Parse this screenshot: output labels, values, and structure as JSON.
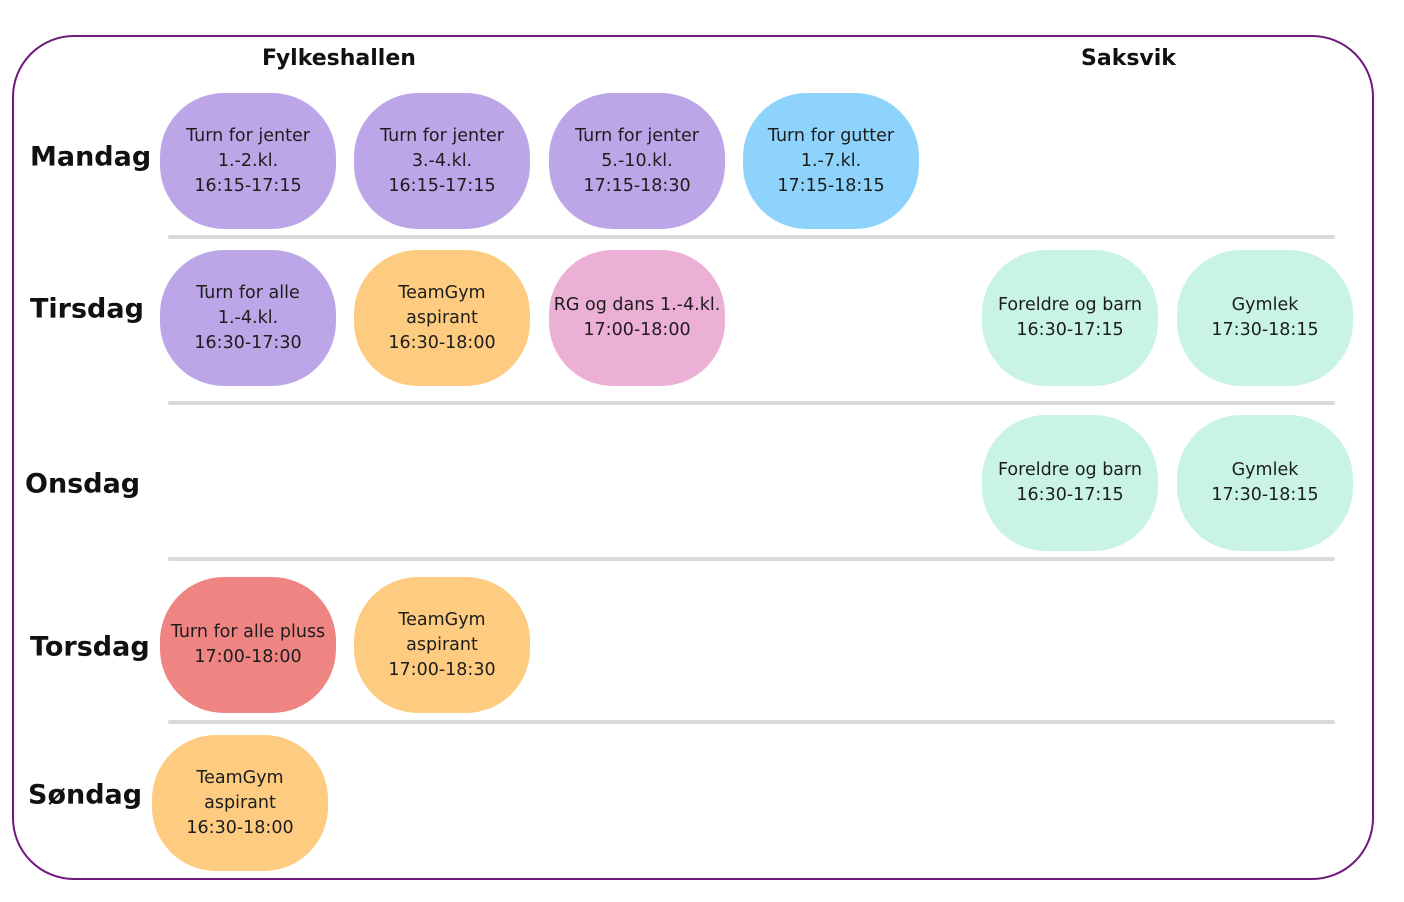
{
  "venues": {
    "fylkeshallen": "Fylkeshallen",
    "saksvik": "Saksvik"
  },
  "colors": {
    "border": "#6f1a7c",
    "divider": "#d9d9d9",
    "purple": "#bca6e8",
    "blue": "#8ed3fc",
    "orange": "#fdcc80",
    "pink": "#ecb0d6",
    "mint": "#c9f4e4",
    "red": "#ef8582"
  },
  "days": {
    "mandag": {
      "label": "Mandag",
      "sessions": [
        {
          "lines": [
            "Turn for jenter",
            "1.-2.kl.",
            "16:15-17:15"
          ],
          "color": "purple"
        },
        {
          "lines": [
            "Turn for jenter",
            "3.-4.kl.",
            "16:15-17:15"
          ],
          "color": "purple"
        },
        {
          "lines": [
            "Turn for jenter",
            "5.-10.kl.",
            "17:15-18:30"
          ],
          "color": "purple"
        },
        {
          "lines": [
            "Turn for gutter",
            "1.-7.kl.",
            "17:15-18:15"
          ],
          "color": "blue"
        }
      ]
    },
    "tirsdag": {
      "label": "Tirsdag",
      "sessions": [
        {
          "lines": [
            "Turn for alle",
            "1.-4.kl.",
            "16:30-17:30"
          ],
          "color": "purple"
        },
        {
          "lines": [
            "TeamGym",
            "aspirant",
            "16:30-18:00"
          ],
          "color": "orange"
        },
        {
          "lines": [
            "RG og dans 1.-4.kl.",
            "17:00-18:00"
          ],
          "color": "pink"
        },
        {
          "lines": [
            "Foreldre og barn",
            "16:30-17:15"
          ],
          "color": "mint"
        },
        {
          "lines": [
            "Gymlek",
            "17:30-18:15"
          ],
          "color": "mint"
        }
      ]
    },
    "onsdag": {
      "label": "Onsdag",
      "sessions": [
        {
          "lines": [
            "Foreldre og barn",
            "16:30-17:15"
          ],
          "color": "mint"
        },
        {
          "lines": [
            "Gymlek",
            "17:30-18:15"
          ],
          "color": "mint"
        }
      ]
    },
    "torsdag": {
      "label": "Torsdag",
      "sessions": [
        {
          "lines": [
            "Turn for alle pluss",
            "17:00-18:00"
          ],
          "color": "red"
        },
        {
          "lines": [
            "TeamGym",
            "aspirant",
            "17:00-18:30"
          ],
          "color": "orange"
        }
      ]
    },
    "sondag": {
      "label": "Søndag",
      "sessions": [
        {
          "lines": [
            "TeamGym",
            "aspirant",
            "16:30-18:00"
          ],
          "color": "orange"
        }
      ]
    }
  }
}
